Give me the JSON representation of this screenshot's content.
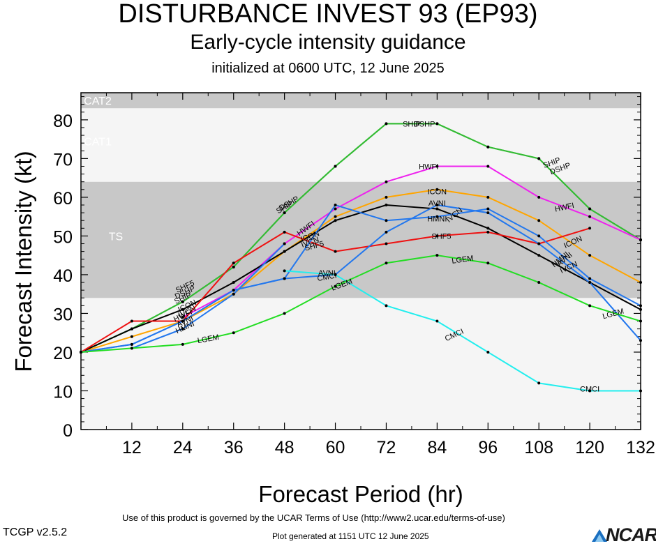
{
  "title": "DISTURBANCE INVEST 93 (EP93)",
  "subtitle": "Early-cycle intensity guidance",
  "init_line": "initialized at 0600 UTC, 12 June 2025",
  "footer": {
    "terms": "Use of this product is governed by the UCAR Terms of Use (http://www2.ucar.edu/terms-of-use)",
    "version": "TCGP v2.5.2",
    "generated": "Plot generated at 1151 UTC   12 June 2025",
    "logo": "NCAR"
  },
  "chart_data": {
    "type": "line",
    "xlabel": "Forecast Period (hr)",
    "ylabel": "Forecast Intensity (kt)",
    "xlim": [
      0,
      132
    ],
    "ylim": [
      0,
      87
    ],
    "xticks": [
      12,
      24,
      36,
      48,
      60,
      72,
      84,
      96,
      108,
      120,
      132
    ],
    "yticks": [
      0,
      10,
      20,
      30,
      40,
      50,
      60,
      70,
      80
    ],
    "bands": [
      {
        "label": "TS",
        "from": 34,
        "to": 64,
        "color": "#c8c8c8"
      },
      {
        "label": "CAT1",
        "from": 64,
        "to": 83,
        "color": "#f5f5f5"
      },
      {
        "label": "CAT2",
        "from": 83,
        "to": 87,
        "color": "#c8c8c8"
      }
    ],
    "below_band_color": "#f5f5f5",
    "series": [
      {
        "name": "SHIP",
        "color": "#33bb33",
        "x": [
          0,
          12,
          24,
          36,
          48,
          60,
          72,
          84,
          96,
          108,
          120,
          132
        ],
        "y": [
          20,
          26,
          33,
          42,
          56,
          68,
          79,
          79,
          73,
          70,
          57,
          49
        ],
        "labels": [
          {
            "text": "SHIP",
            "x": 24,
            "y": 34,
            "rot": -25
          },
          {
            "text": "SHIP",
            "x": 48,
            "y": 57.5,
            "rot": -30
          },
          {
            "text": "SHIP",
            "x": 78,
            "y": 79,
            "rot": 0
          },
          {
            "text": "SHIP",
            "x": 111,
            "y": 69,
            "rot": -20
          }
        ]
      },
      {
        "name": "DSHP",
        "color": "#33bb33",
        "x": [
          0,
          12,
          24,
          36,
          48,
          60,
          72,
          84,
          96,
          108,
          120,
          132
        ],
        "y": [
          20,
          26,
          33,
          42,
          56,
          68,
          79,
          79,
          73,
          70,
          57,
          49
        ],
        "labels": [
          {
            "text": "DSHP",
            "x": 24.5,
            "y": 35.5,
            "rot": -25
          },
          {
            "text": "DSHP",
            "x": 49,
            "y": 58.5,
            "rot": -30
          },
          {
            "text": "DSHP",
            "x": 81,
            "y": 79,
            "rot": 0
          },
          {
            "text": "DSHP",
            "x": 113,
            "y": 67.5,
            "rot": -20
          }
        ]
      },
      {
        "name": "HWFI",
        "color": "#ee22ee",
        "x": [
          24,
          36,
          48,
          60,
          72,
          84,
          96,
          108,
          120,
          132
        ],
        "y": [
          29,
          36,
          48,
          57,
          64,
          68,
          68,
          60,
          55,
          49
        ],
        "labels": [
          {
            "text": "HWFI",
            "x": 24,
            "y": 29.5,
            "rot": -25
          },
          {
            "text": "HWFI",
            "x": 53,
            "y": 52,
            "rot": -35
          },
          {
            "text": "HWFI",
            "x": 82,
            "y": 68,
            "rot": 0
          },
          {
            "text": "HWFI",
            "x": 114,
            "y": 57.5,
            "rot": -12
          }
        ]
      },
      {
        "name": "ICON",
        "color": "#ffa500",
        "x": [
          0,
          12,
          24,
          36,
          48,
          60,
          72,
          84,
          96,
          108,
          120,
          132
        ],
        "y": [
          20,
          24,
          28,
          35,
          46,
          55,
          60,
          62,
          60,
          54,
          45,
          38
        ],
        "labels": [
          {
            "text": "ICON",
            "x": 25,
            "y": 32,
            "rot": -25
          },
          {
            "text": "ICON",
            "x": 54,
            "y": 50,
            "rot": -20
          },
          {
            "text": "ICON",
            "x": 84,
            "y": 61.5,
            "rot": 0
          },
          {
            "text": "ICON",
            "x": 116,
            "y": 48.5,
            "rot": -25
          }
        ]
      },
      {
        "name": "IVCN",
        "color": "#000000",
        "x": [
          0,
          12,
          24,
          36,
          48,
          60,
          72,
          84,
          96,
          108,
          120,
          132
        ],
        "y": [
          20,
          26,
          31,
          38,
          46,
          54,
          58,
          57,
          52,
          45,
          38,
          31
        ],
        "labels": [
          {
            "text": "IVCN",
            "x": 25,
            "y": 30.5,
            "rot": -25
          },
          {
            "text": "IVCN",
            "x": 54,
            "y": 48.5,
            "rot": -20
          },
          {
            "text": "IVCN",
            "x": 88,
            "y": 55.5,
            "rot": -40
          },
          {
            "text": "IVCN",
            "x": 115,
            "y": 42,
            "rot": -25
          }
        ]
      },
      {
        "name": "SHF5",
        "color": "#ee1111",
        "x": [
          0,
          12,
          24,
          36,
          48,
          60,
          72,
          84,
          96,
          108,
          120
        ],
        "y": [
          20,
          28,
          28,
          43,
          51,
          46,
          48,
          50,
          51,
          48,
          52
        ],
        "labels": [
          {
            "text": "SHF5",
            "x": 24.5,
            "y": 37,
            "rot": -25
          },
          {
            "text": "SHF5",
            "x": 55,
            "y": 47.5,
            "rot": -15
          },
          {
            "text": "SHF5",
            "x": 85,
            "y": 50,
            "rot": 0
          }
        ]
      },
      {
        "name": "HMNI",
        "color": "#2277ee",
        "x": [
          0,
          12,
          24,
          36,
          48,
          60,
          72,
          84,
          96,
          108,
          120,
          132
        ],
        "y": [
          20,
          22,
          28,
          36,
          39,
          40,
          51,
          58,
          56,
          48,
          38,
          23
        ],
        "labels": [
          {
            "text": "HMNI",
            "x": 24.5,
            "y": 26.5,
            "rot": -25
          },
          {
            "text": "HMNI",
            "x": 84,
            "y": 54.5,
            "rot": 0
          },
          {
            "text": "HMNI",
            "x": 113,
            "y": 44,
            "rot": -40
          }
        ]
      },
      {
        "name": "AVNI",
        "color": "#2277ee",
        "x": [
          0,
          12,
          24,
          36,
          48,
          60,
          72,
          84,
          96,
          108,
          120,
          132
        ],
        "y": [
          20,
          22,
          28,
          36,
          39,
          58,
          54,
          55,
          57,
          50,
          39,
          32
        ],
        "labels": [
          {
            "text": "AVNI",
            "x": 24.5,
            "y": 28,
            "rot": -25
          },
          {
            "text": "AVNI",
            "x": 58,
            "y": 40.5,
            "rot": 0
          },
          {
            "text": "AVNI",
            "x": 84,
            "y": 58.5,
            "rot": 0
          },
          {
            "text": "AVNI",
            "x": 114,
            "y": 44,
            "rot": -40
          }
        ]
      },
      {
        "name": "HWFI",
        "color": "#2277ee",
        "x": [
          12,
          24,
          36,
          48
        ],
        "y": [
          21,
          26,
          35,
          48
        ],
        "labels": []
      },
      {
        "name": "CMCI",
        "color": "#22eeee",
        "x": [
          48,
          60,
          72,
          84,
          96,
          108,
          120,
          132
        ],
        "y": [
          41,
          40,
          32,
          28,
          20,
          12,
          10,
          10
        ],
        "labels": [
          {
            "text": "CMCI",
            "x": 58,
            "y": 39.5,
            "rot": -10
          },
          {
            "text": "CMCI",
            "x": 88,
            "y": 24.5,
            "rot": -25
          },
          {
            "text": "CMCI",
            "x": 120,
            "y": 10.5,
            "rot": 0
          }
        ]
      },
      {
        "name": "LGEM",
        "color": "#22dd22",
        "x": [
          0,
          12,
          24,
          36,
          48,
          60,
          72,
          84,
          96,
          108,
          120,
          132
        ],
        "y": [
          20,
          21,
          22,
          25,
          30,
          37,
          43,
          45,
          43,
          38,
          32,
          28
        ],
        "labels": [
          {
            "text": "LGEM",
            "x": 30,
            "y": 23.5,
            "rot": -10
          },
          {
            "text": "LGEM",
            "x": 61.5,
            "y": 37.5,
            "rot": -20
          },
          {
            "text": "LGEM",
            "x": 90,
            "y": 44,
            "rot": -8
          },
          {
            "text": "LGEM",
            "x": 125.5,
            "y": 30,
            "rot": -15
          }
        ]
      }
    ],
    "bands_label_color": "#ffffff"
  }
}
